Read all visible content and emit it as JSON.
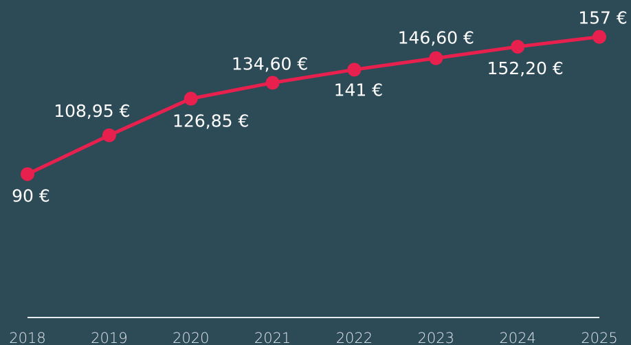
{
  "chart_data": {
    "type": "line",
    "categories": [
      "2018",
      "2019",
      "2020",
      "2021",
      "2022",
      "2023",
      "2024",
      "2025"
    ],
    "values": [
      90,
      108.95,
      126.85,
      134.6,
      141,
      146.6,
      152.2,
      157
    ],
    "value_labels": [
      "90 €",
      "108,95 €",
      "126,85 €",
      "134,60 €",
      "141 €",
      "146,60 €",
      "152,20 €",
      "157 €"
    ],
    "color": "#e8204e",
    "ylim": [
      20,
      175
    ]
  }
}
